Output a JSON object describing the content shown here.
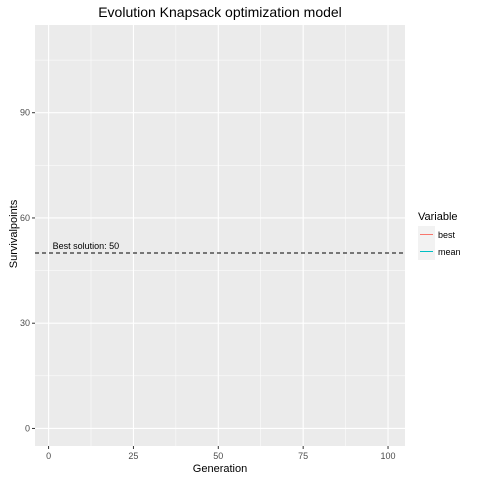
{
  "chart_data": {
    "type": "line",
    "title": "Evolution Knapsack optimization model",
    "xlabel": "Generation",
    "ylabel": "Survivalpoints",
    "xlim": [
      -4,
      105
    ],
    "ylim": [
      -5,
      115
    ],
    "x_ticks": [
      0,
      25,
      50,
      75,
      100
    ],
    "y_ticks": [
      0,
      30,
      60,
      90
    ],
    "x_minor": [
      12.5,
      37.5,
      62.5,
      87.5
    ],
    "y_minor": [
      15,
      45,
      75,
      105
    ],
    "grid": true,
    "background": "#ebebeb",
    "legend": {
      "title": "Variable",
      "position": "right",
      "entries": [
        {
          "label": "best",
          "color": "#f8766d"
        },
        {
          "label": "mean",
          "color": "#00bfc4"
        }
      ]
    },
    "series": [
      {
        "name": "best",
        "color": "#f8766d",
        "x": [],
        "y": []
      },
      {
        "name": "mean",
        "color": "#00bfc4",
        "x": [],
        "y": []
      }
    ],
    "hline": {
      "y": 50,
      "style": "dashed",
      "color": "#000000"
    },
    "annotation": {
      "text": "Best solution: 50",
      "x": 0,
      "y": 50
    }
  }
}
